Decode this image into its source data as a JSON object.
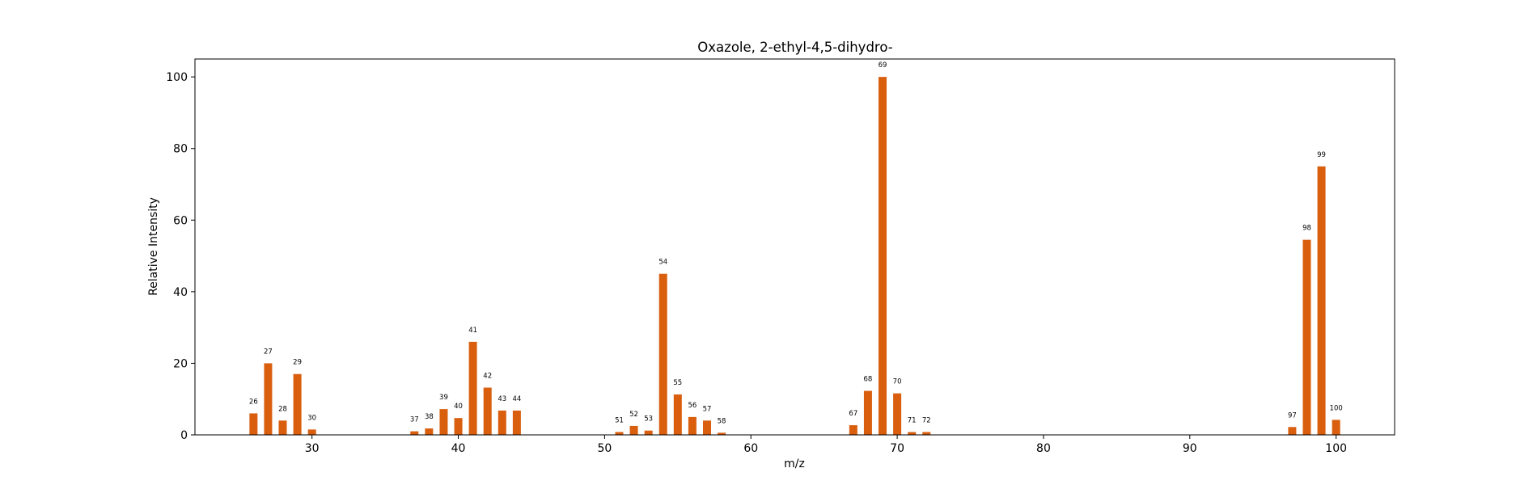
{
  "chart_data": {
    "type": "bar",
    "title": "Oxazole, 2-ethyl-4,5-dihydro-",
    "xlabel": "m/z",
    "ylabel": "Relative Intensity",
    "xlim": [
      22,
      104
    ],
    "ylim": [
      0,
      105
    ],
    "xticks": [
      30,
      40,
      50,
      60,
      70,
      80,
      90,
      100
    ],
    "yticks": [
      0,
      20,
      40,
      60,
      80,
      100
    ],
    "grid": false,
    "bar_color": "#d95f0e",
    "x": [
      26,
      27,
      28,
      29,
      30,
      37,
      38,
      39,
      40,
      41,
      42,
      43,
      44,
      51,
      52,
      53,
      54,
      55,
      56,
      57,
      58,
      67,
      68,
      69,
      70,
      71,
      72,
      97,
      98,
      99,
      100
    ],
    "values": [
      6.0,
      20.0,
      4.0,
      17.0,
      1.5,
      1.0,
      1.8,
      7.2,
      4.7,
      26.0,
      13.2,
      6.8,
      6.8,
      0.8,
      2.5,
      1.2,
      45.0,
      11.3,
      5.0,
      4.0,
      0.6,
      2.7,
      12.3,
      100.0,
      11.6,
      0.8,
      0.8,
      2.2,
      54.5,
      75.0,
      4.2
    ]
  }
}
